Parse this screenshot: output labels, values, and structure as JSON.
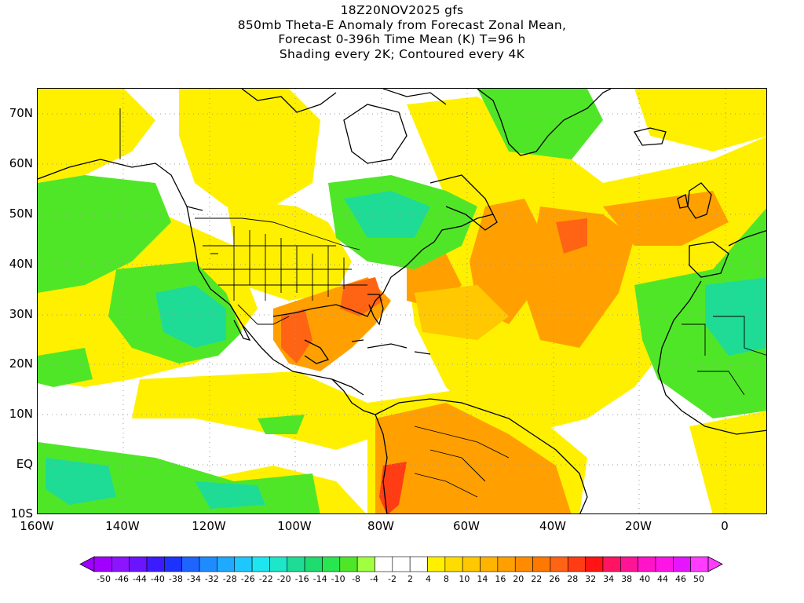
{
  "title": {
    "lines": [
      "18Z20NOV2025 gfs",
      "850mb Theta-E Anomaly from Forecast Zonal Mean,",
      "Forecast 0-396h Time Mean (K) T=96 h",
      "Shading every 2K; Contoured every 4K"
    ]
  },
  "map": {
    "projection": "cylindrical",
    "lon_range": [
      -160,
      10
    ],
    "lat_range": [
      -10,
      75
    ],
    "grid": "dotted",
    "lat_labels": [
      "70N",
      "60N",
      "50N",
      "40N",
      "30N",
      "20N",
      "10N",
      "EQ",
      "10S"
    ],
    "lat_values": [
      70,
      60,
      50,
      40,
      30,
      20,
      10,
      0,
      -10
    ],
    "lon_labels": [
      "160W",
      "140W",
      "120W",
      "100W",
      "80W",
      "60W",
      "40W",
      "20W",
      "0"
    ],
    "lon_values": [
      -160,
      -140,
      -120,
      -100,
      -80,
      -60,
      -40,
      -20,
      0
    ]
  },
  "colorbar": {
    "labels": [
      "-50",
      "-46",
      "-44",
      "-40",
      "-38",
      "-34",
      "-32",
      "-28",
      "-26",
      "-22",
      "-20",
      "-16",
      "-14",
      "-10",
      "-8",
      "-4",
      "-2",
      "2",
      "4",
      "8",
      "10",
      "14",
      "16",
      "20",
      "22",
      "26",
      "28",
      "32",
      "34",
      "38",
      "40",
      "44",
      "46",
      "50"
    ],
    "colors": [
      "#a000ff",
      "#8c14ff",
      "#6a14ff",
      "#3c1cff",
      "#1e32ff",
      "#1e64ff",
      "#1e8cff",
      "#1eaaff",
      "#1ec8ff",
      "#1ee6f0",
      "#1ee6c8",
      "#1edc96",
      "#1edc6e",
      "#28e650",
      "#50e628",
      "#a0ff40",
      "#ffffff",
      "#ffffff",
      "#ffffff",
      "#fff000",
      "#ffdc00",
      "#ffc800",
      "#ffb400",
      "#ffa000",
      "#ff8c00",
      "#ff7800",
      "#ff6414",
      "#ff3c14",
      "#ff1414",
      "#ff1464",
      "#ff1496",
      "#ff14c8",
      "#ff14e6",
      "#e614ff",
      "#ff3cff"
    ]
  }
}
